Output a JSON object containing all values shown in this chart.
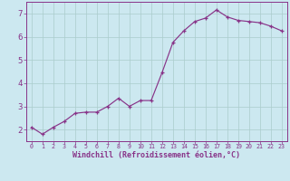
{
  "x": [
    0,
    1,
    2,
    3,
    4,
    5,
    6,
    7,
    8,
    9,
    10,
    11,
    12,
    13,
    14,
    15,
    16,
    17,
    18,
    19,
    20,
    21,
    22,
    23
  ],
  "y": [
    2.1,
    1.8,
    2.1,
    2.35,
    2.7,
    2.75,
    2.75,
    3.0,
    3.35,
    3.0,
    3.25,
    3.25,
    4.45,
    5.75,
    6.25,
    6.65,
    6.8,
    7.15,
    6.85,
    6.7,
    6.65,
    6.6,
    6.45,
    6.25
  ],
  "line_color": "#883388",
  "marker": "+",
  "marker_size": 3.5,
  "marker_linewidth": 0.9,
  "linewidth": 0.85,
  "bg_color": "#cce8f0",
  "grid_color": "#aacccc",
  "xlabel": "Windchill (Refroidissement éolien,°C)",
  "xlabel_color": "#883388",
  "tick_color": "#883388",
  "spine_color": "#883388",
  "ylim": [
    1.5,
    7.5
  ],
  "xlim": [
    -0.5,
    23.5
  ],
  "yticks": [
    2,
    3,
    4,
    5,
    6,
    7
  ],
  "xticks": [
    0,
    1,
    2,
    3,
    4,
    5,
    6,
    7,
    8,
    9,
    10,
    11,
    12,
    13,
    14,
    15,
    16,
    17,
    18,
    19,
    20,
    21,
    22,
    23
  ],
  "xlabel_fontsize": 6.0,
  "xtick_fontsize": 4.8,
  "ytick_fontsize": 6.5
}
